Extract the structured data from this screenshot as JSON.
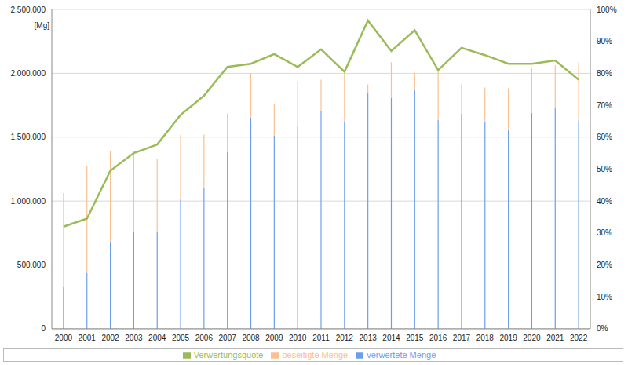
{
  "chart_data": {
    "type": "bar",
    "ylabel": "[Mg]",
    "categories": [
      "2000",
      "2001",
      "2002",
      "2003",
      "2004",
      "2005",
      "2006",
      "2007",
      "2008",
      "2009",
      "2010",
      "2011",
      "2012",
      "2013",
      "2014",
      "2015",
      "2016",
      "2017",
      "2018",
      "2019",
      "2020",
      "2021",
      "2022"
    ],
    "series": [
      {
        "name": "verwertete Menge",
        "color": "#6d9eeb",
        "values": [
          333000,
          438000,
          685000,
          765000,
          765000,
          1019000,
          1105000,
          1383000,
          1654000,
          1512000,
          1586000,
          1704000,
          1617000,
          1846000,
          1809000,
          1870000,
          1636000,
          1685000,
          1617000,
          1562000,
          1691000,
          1728000,
          1630000
        ]
      },
      {
        "name": "beseitigte Menge",
        "color": "#fac090",
        "values": [
          729000,
          834000,
          704000,
          625000,
          562000,
          500000,
          415000,
          302000,
          346000,
          247000,
          352000,
          246000,
          389000,
          68000,
          277000,
          136000,
          389000,
          229000,
          272000,
          321000,
          352000,
          334000,
          456000
        ]
      },
      {
        "name": "Verwertungsquote",
        "color": "#9bbb59",
        "type": "line",
        "axis": "y2",
        "values": [
          32,
          34.5,
          49.5,
          55,
          57.7,
          67,
          73,
          82,
          83,
          86,
          82,
          87.5,
          80.5,
          96.5,
          87,
          93.5,
          81,
          88,
          85.7,
          83,
          83,
          84,
          78
        ]
      }
    ],
    "stacked": true,
    "grid": true,
    "legend": "bottom",
    "ylim": [
      0,
      2500000
    ],
    "yticks": [
      0,
      {
        "value": 500000,
        "label": "500.000"
      },
      {
        "value": 1000000,
        "label": "1.000.000"
      },
      {
        "value": 1500000,
        "label": "1.500.000"
      },
      {
        "value": 2000000,
        "label": "2.000.000"
      },
      {
        "value": 2500000,
        "label": "2.500.000"
      }
    ],
    "y2lim": [
      0,
      100
    ],
    "y2ticks": [
      {
        "value": 0,
        "label": "0%"
      },
      {
        "value": 10,
        "label": "10%"
      },
      {
        "value": 20,
        "label": "20%"
      },
      {
        "value": 30,
        "label": "30%"
      },
      {
        "value": 40,
        "label": "40%"
      },
      {
        "value": 50,
        "label": "50%"
      },
      {
        "value": 60,
        "label": "60%"
      },
      {
        "value": 70,
        "label": "70%"
      },
      {
        "value": 80,
        "label": "80%"
      },
      {
        "value": 90,
        "label": "90%"
      },
      {
        "value": 100,
        "label": "100%"
      }
    ]
  }
}
